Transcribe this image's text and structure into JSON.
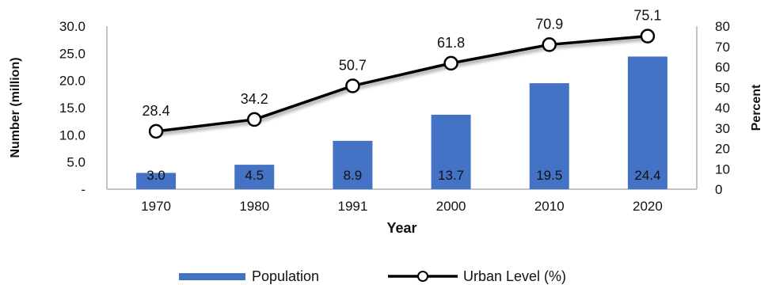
{
  "chart_data": {
    "type": "bar+line",
    "categories": [
      "1970",
      "1980",
      "1991",
      "2000",
      "2010",
      "2020"
    ],
    "series": [
      {
        "name": "Population",
        "type": "bar",
        "axis": "left",
        "values": [
          3.0,
          4.5,
          8.9,
          13.7,
          19.5,
          24.4
        ],
        "labels": [
          "3.0",
          "4.5",
          "8.9",
          "13.7",
          "19.5",
          "24.4"
        ],
        "color": "#4472c4"
      },
      {
        "name": "Urban Level (%)",
        "type": "line",
        "axis": "right",
        "values": [
          28.4,
          34.2,
          50.7,
          61.8,
          70.9,
          75.1
        ],
        "labels": [
          "28.4",
          "34.2",
          "50.7",
          "61.8",
          "70.9",
          "75.1"
        ],
        "color": "#000000"
      }
    ],
    "xlabel": "Year",
    "ylabel_left": "Number (million)",
    "ylabel_right": "Percent",
    "ylim_left": [
      0,
      30
    ],
    "ylim_right": [
      0,
      80
    ],
    "left_ticks": [
      "-",
      "5.0",
      "10.0",
      "15.0",
      "20.0",
      "25.0",
      "30.0"
    ],
    "left_tick_values": [
      0,
      5,
      10,
      15,
      20,
      25,
      30
    ],
    "right_ticks": [
      "0",
      "10",
      "20",
      "30",
      "40",
      "50",
      "60",
      "70",
      "80"
    ],
    "right_tick_values": [
      0,
      10,
      20,
      30,
      40,
      50,
      60,
      70,
      80
    ],
    "grid": false,
    "legend_position": "bottom"
  }
}
